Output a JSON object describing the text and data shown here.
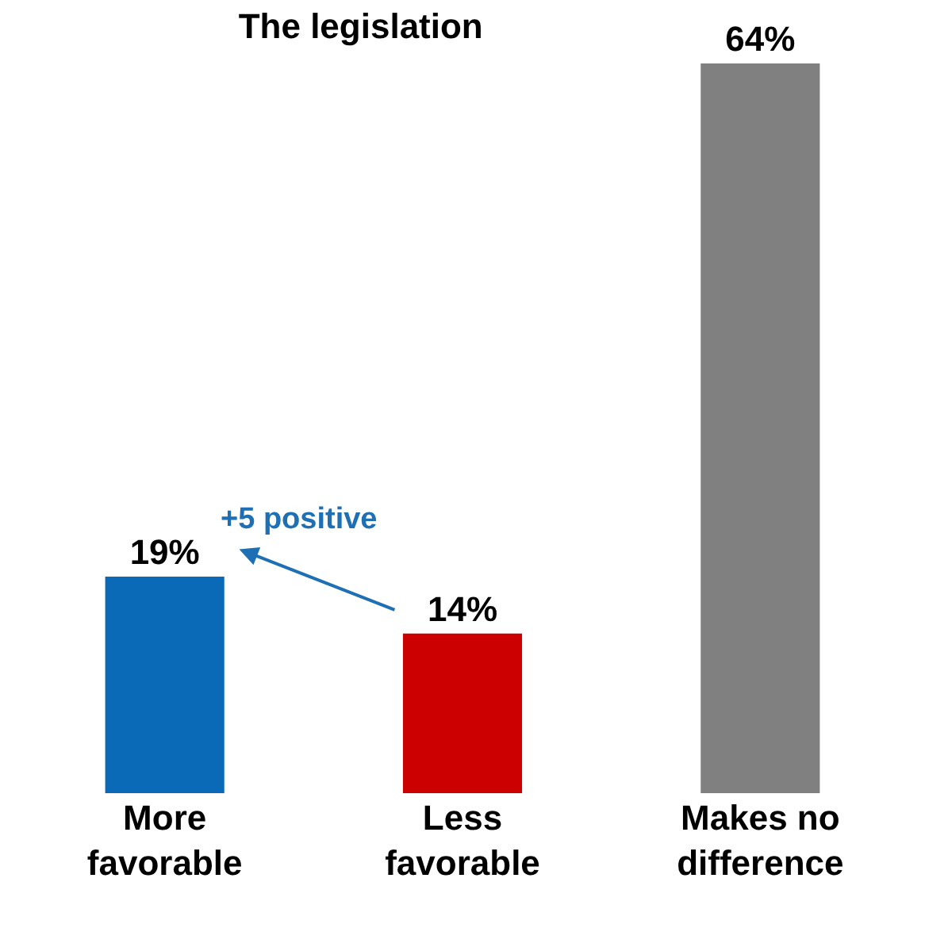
{
  "chart_data": {
    "type": "bar",
    "title": "The legislation",
    "categories": [
      "More favorable",
      "Less favorable",
      "Makes no difference"
    ],
    "values": [
      19,
      14,
      64
    ],
    "colors": [
      "#0a6ab8",
      "#cc0000",
      "#808080"
    ],
    "value_labels": [
      "19%",
      "14%",
      "64%"
    ],
    "annotations": [
      "+5 positive"
    ],
    "legend": false
  }
}
